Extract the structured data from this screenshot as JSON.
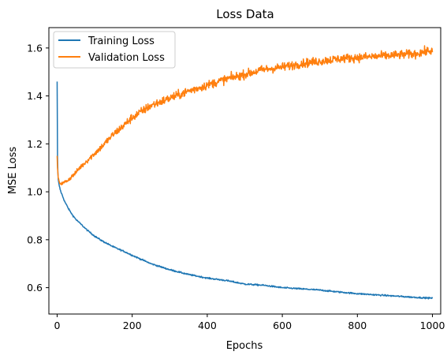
{
  "chart_data": {
    "type": "line",
    "title": "Loss Data",
    "xlabel": "Epochs",
    "ylabel": "MSE Loss",
    "xlim": [
      -22,
      1022
    ],
    "ylim": [
      0.49,
      1.685
    ],
    "xticks": [
      0,
      200,
      400,
      600,
      800,
      1000
    ],
    "yticks": [
      0.6,
      0.8,
      1.0,
      1.2,
      1.4,
      1.6
    ],
    "xtick_labels": [
      "0",
      "200",
      "400",
      "600",
      "800",
      "1000"
    ],
    "ytick_labels": [
      "0.6",
      "0.8",
      "1.0",
      "1.2",
      "1.4",
      "1.6"
    ],
    "grid": false,
    "legend_position": "top-left",
    "series": [
      {
        "name": "Training Loss",
        "color": "#1f77b4",
        "x": [
          0,
          1,
          2,
          3,
          5,
          8,
          10,
          15,
          20,
          30,
          40,
          50,
          60,
          80,
          100,
          120,
          150,
          180,
          200,
          250,
          300,
          350,
          400,
          450,
          500,
          550,
          600,
          650,
          700,
          750,
          800,
          850,
          900,
          950,
          1000
        ],
        "values": [
          1.46,
          1.15,
          1.08,
          1.05,
          1.03,
          1.01,
          1.0,
          0.98,
          0.96,
          0.93,
          0.905,
          0.885,
          0.87,
          0.84,
          0.815,
          0.795,
          0.77,
          0.75,
          0.735,
          0.7,
          0.675,
          0.655,
          0.64,
          0.63,
          0.615,
          0.61,
          0.6,
          0.595,
          0.59,
          0.582,
          0.575,
          0.57,
          0.565,
          0.56,
          0.556
        ]
      },
      {
        "name": "Validation Loss",
        "color": "#ff7f0e",
        "x": [
          0,
          1,
          3,
          5,
          10,
          15,
          20,
          30,
          40,
          50,
          60,
          80,
          100,
          120,
          150,
          180,
          200,
          250,
          300,
          350,
          400,
          450,
          500,
          550,
          600,
          650,
          700,
          750,
          800,
          850,
          900,
          950,
          1000
        ],
        "values": [
          1.15,
          1.1,
          1.06,
          1.04,
          1.035,
          1.035,
          1.04,
          1.05,
          1.065,
          1.08,
          1.1,
          1.13,
          1.16,
          1.19,
          1.24,
          1.28,
          1.31,
          1.36,
          1.39,
          1.42,
          1.445,
          1.47,
          1.49,
          1.51,
          1.52,
          1.535,
          1.545,
          1.555,
          1.56,
          1.565,
          1.57,
          1.575,
          1.59
        ]
      }
    ]
  }
}
